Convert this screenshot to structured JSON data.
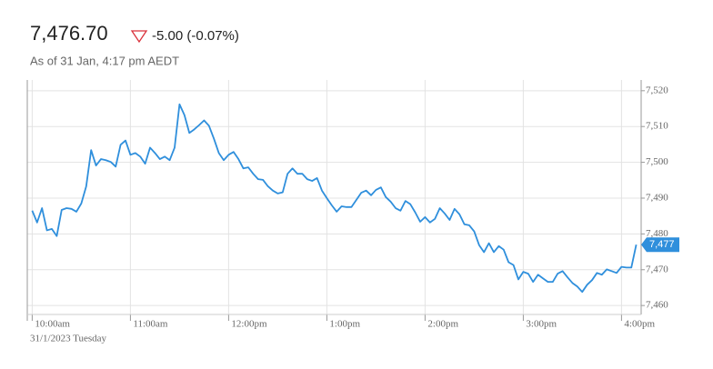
{
  "header": {
    "price": "7,476.70",
    "change": "-5.00 (-0.07%)",
    "as_of": "As of 31 Jan, 4:17 pm AEDT"
  },
  "chart_data": {
    "type": "line",
    "x_sublabel": "31/1/2023 Tuesday",
    "x": [
      600,
      603,
      606,
      609,
      612,
      615,
      618,
      621,
      624,
      627,
      630,
      633,
      636,
      639,
      642,
      645,
      648,
      651,
      654,
      657,
      660,
      663,
      666,
      669,
      672,
      675,
      678,
      681,
      684,
      687,
      690,
      693,
      696,
      699,
      702,
      705,
      708,
      711,
      714,
      717,
      720,
      723,
      726,
      729,
      732,
      735,
      738,
      741,
      744,
      747,
      750,
      753,
      756,
      759,
      762,
      765,
      768,
      771,
      774,
      777,
      780,
      783,
      786,
      789,
      792,
      795,
      798,
      801,
      804,
      807,
      810,
      813,
      816,
      819,
      822,
      825,
      828,
      831,
      834,
      837,
      840,
      843,
      846,
      849,
      852,
      855,
      858,
      861,
      864,
      867,
      870,
      873,
      876,
      879,
      882,
      885,
      888,
      891,
      894,
      897,
      900,
      903,
      906,
      909,
      912,
      915,
      918,
      921,
      924,
      927,
      930,
      933,
      936,
      939,
      942,
      945,
      948,
      951,
      954,
      957,
      960,
      963,
      966,
      969
    ],
    "series": [
      {
        "color": "#2f8fdc",
        "values": [
          7486.5,
          7483.2,
          7487.2,
          7481,
          7481.4,
          7479.4,
          7486.7,
          7487.2,
          7487,
          7486.2,
          7488.5,
          7493.3,
          7503.4,
          7499.1,
          7500.9,
          7500.6,
          7500.1,
          7498.8,
          7504.9,
          7506.1,
          7502.1,
          7502.6,
          7501.6,
          7499.6,
          7504.1,
          7502.6,
          7500.9,
          7501.6,
          7500.6,
          7504.1,
          7516.2,
          7513.2,
          7508.2,
          7509.2,
          7510.4,
          7511.7,
          7510.2,
          7506.6,
          7502.6,
          7500.6,
          7502.1,
          7502.9,
          7500.9,
          7498.3,
          7498.6,
          7496.8,
          7495.3,
          7495.1,
          7493.3,
          7492.1,
          7491.3,
          7491.6,
          7496.8,
          7498.3,
          7496.8,
          7496.8,
          7495.3,
          7494.8,
          7495.6,
          7492.1,
          7490,
          7488,
          7486.2,
          7487.7,
          7487.5,
          7487.5,
          7489.5,
          7491.5,
          7492.1,
          7490.8,
          7492.3,
          7493,
          7490.3,
          7489,
          7487.2,
          7486.5,
          7489.2,
          7488.3,
          7486,
          7483.4,
          7484.7,
          7483.2,
          7484.2,
          7487.2,
          7485.7,
          7483.9,
          7487,
          7485.5,
          7482.7,
          7482.4,
          7480.7,
          7476.9,
          7474.9,
          7477.4,
          7474.9,
          7476.6,
          7475.6,
          7472.1,
          7471.3,
          7467.3,
          7469.4,
          7468.9,
          7466.6,
          7468.6,
          7467.6,
          7466.6,
          7466.6,
          7468.9,
          7469.6,
          7467.9,
          7466.3,
          7465.3,
          7463.8,
          7465.8,
          7467.1,
          7469.1,
          7468.6,
          7470.1,
          7469.6,
          7469.1,
          7470.8,
          7470.6,
          7470.6,
          7477
        ]
      }
    ],
    "last_value": {
      "value": 7477,
      "label": "7,477"
    },
    "xlim": [
      597,
      972
    ],
    "xticks": [
      {
        "value": 600,
        "label": "10:00am"
      },
      {
        "value": 660,
        "label": "11:00am"
      },
      {
        "value": 720,
        "label": "12:00pm"
      },
      {
        "value": 780,
        "label": "1:00pm"
      },
      {
        "value": 840,
        "label": "2:00pm"
      },
      {
        "value": 900,
        "label": "3:00pm"
      },
      {
        "value": 960,
        "label": "4:00pm"
      }
    ],
    "ylim": [
      7457.5,
      7523
    ],
    "yticks": [
      {
        "value": 7460,
        "label": "7,460"
      },
      {
        "value": 7470,
        "label": "7,470"
      },
      {
        "value": 7480,
        "label": "7,480"
      },
      {
        "value": 7490,
        "label": "7,490"
      },
      {
        "value": 7500,
        "label": "7,500"
      },
      {
        "value": 7510,
        "label": "7,510"
      },
      {
        "value": 7520,
        "label": "7,520"
      }
    ],
    "grid": true
  }
}
